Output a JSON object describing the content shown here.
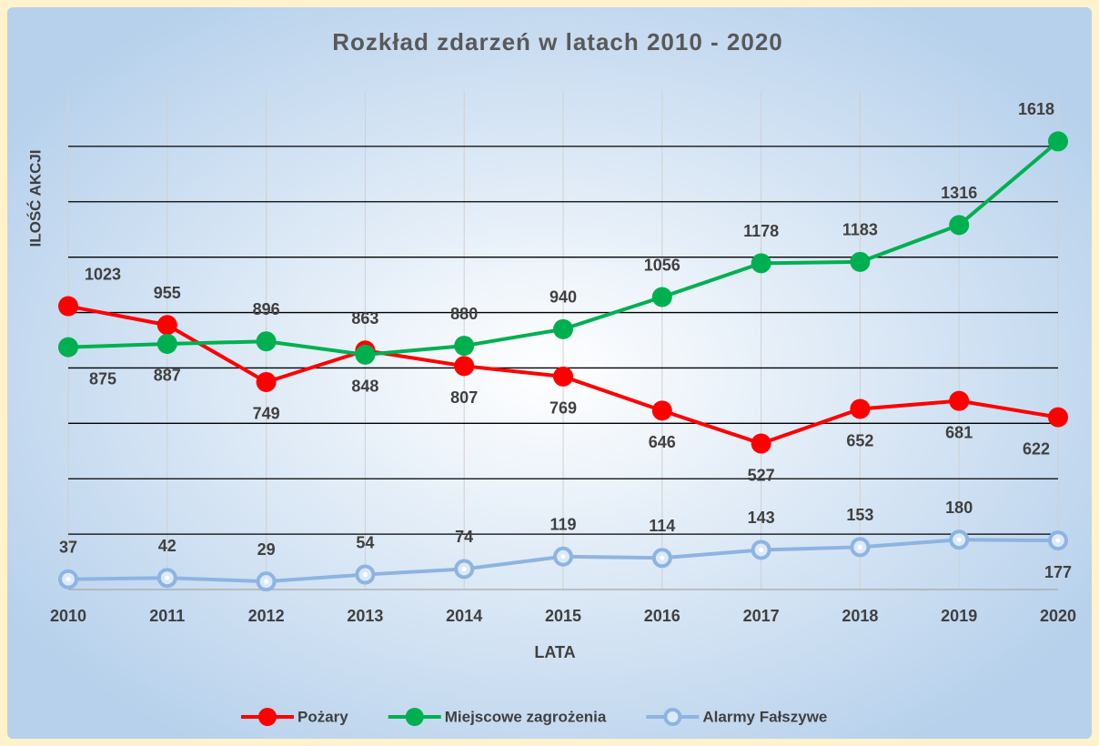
{
  "chart_data": {
    "type": "line",
    "title": "Rozkład zdarzeń w latach 2010 - 2020",
    "x_label": "LATA",
    "y_label": "ILOŚĆ AKCJI",
    "categories": [
      "2010",
      "2011",
      "2012",
      "2013",
      "2014",
      "2015",
      "2016",
      "2017",
      "2018",
      "2019",
      "2020"
    ],
    "series": [
      {
        "name": "Pożary",
        "color": "#ff0000",
        "values": [
          1023,
          955,
          749,
          863,
          807,
          769,
          646,
          527,
          652,
          681,
          622
        ]
      },
      {
        "name": "Miejscowe zagrożenia",
        "color": "#00b050",
        "values": [
          875,
          887,
          896,
          848,
          880,
          940,
          1056,
          1178,
          1183,
          1316,
          1618
        ]
      },
      {
        "name": "Alarmy Fałszywe",
        "color": "#8db4e2",
        "values": [
          37,
          42,
          29,
          54,
          74,
          119,
          114,
          143,
          153,
          180,
          177
        ]
      }
    ],
    "ylim": [
      0,
      1800
    ],
    "yticks": [
      0,
      200,
      400,
      600,
      800,
      1000,
      1200,
      1400,
      1600,
      1800
    ],
    "grid": true,
    "legend": "bottom"
  }
}
